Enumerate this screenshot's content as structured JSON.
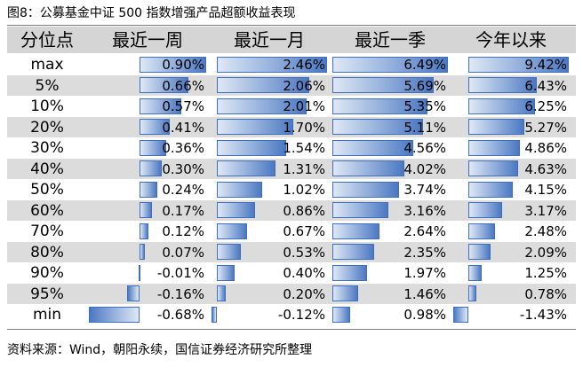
{
  "title": "图8：公募基金中证 500 指数增强产品超额收益表现",
  "source": "资料来源：Wind，朝阳永续，国信证券经济研究所整理",
  "chart_data": {
    "type": "table",
    "headers": [
      "分位点",
      "最近一周",
      "最近一月",
      "最近一季",
      "今年以来"
    ],
    "rows": [
      {
        "label": "max",
        "values": [
          0.9,
          2.46,
          6.49,
          9.42
        ],
        "display": [
          "0.90%",
          "2.46%",
          "6.49%",
          "9.42%"
        ]
      },
      {
        "label": "5%",
        "values": [
          0.66,
          2.06,
          5.69,
          6.43
        ],
        "display": [
          "0.66%",
          "2.06%",
          "5.69%",
          "6.43%"
        ]
      },
      {
        "label": "10%",
        "values": [
          0.57,
          2.01,
          5.35,
          6.25
        ],
        "display": [
          "0.57%",
          "2.01%",
          "5.35%",
          "6.25%"
        ]
      },
      {
        "label": "20%",
        "values": [
          0.41,
          1.7,
          5.11,
          5.27
        ],
        "display": [
          "0.41%",
          "1.70%",
          "5.11%",
          "5.27%"
        ]
      },
      {
        "label": "30%",
        "values": [
          0.36,
          1.54,
          4.56,
          4.86
        ],
        "display": [
          "0.36%",
          "1.54%",
          "4.56%",
          "4.86%"
        ]
      },
      {
        "label": "40%",
        "values": [
          0.3,
          1.31,
          4.02,
          4.63
        ],
        "display": [
          "0.30%",
          "1.31%",
          "4.02%",
          "4.63%"
        ]
      },
      {
        "label": "50%",
        "values": [
          0.24,
          1.02,
          3.74,
          4.15
        ],
        "display": [
          "0.24%",
          "1.02%",
          "3.74%",
          "4.15%"
        ]
      },
      {
        "label": "60%",
        "values": [
          0.17,
          0.86,
          3.16,
          3.17
        ],
        "display": [
          "0.17%",
          "0.86%",
          "3.16%",
          "3.17%"
        ]
      },
      {
        "label": "70%",
        "values": [
          0.12,
          0.67,
          2.64,
          2.48
        ],
        "display": [
          "0.12%",
          "0.67%",
          "2.64%",
          "2.48%"
        ]
      },
      {
        "label": "80%",
        "values": [
          0.07,
          0.53,
          2.35,
          2.09
        ],
        "display": [
          "0.07%",
          "0.53%",
          "2.35%",
          "2.09%"
        ]
      },
      {
        "label": "90%",
        "values": [
          -0.01,
          0.4,
          1.97,
          1.25
        ],
        "display": [
          "-0.01%",
          "0.40%",
          "1.97%",
          "1.25%"
        ]
      },
      {
        "label": "95%",
        "values": [
          -0.16,
          0.2,
          1.46,
          0.78
        ],
        "display": [
          "-0.16%",
          "0.20%",
          "1.46%",
          "0.78%"
        ]
      },
      {
        "label": "min",
        "values": [
          -0.68,
          -0.12,
          0.98,
          -1.43
        ],
        "display": [
          "-0.68%",
          "-0.12%",
          "0.98%",
          "-1.43%"
        ]
      }
    ],
    "bar_colors": {
      "fill_dark": "#4c78c2",
      "fill_light": "#dfe8f5",
      "border": "#3f6fbf"
    },
    "stripe_color": "#dcdcdc",
    "header_color": "#d5d5d5"
  }
}
